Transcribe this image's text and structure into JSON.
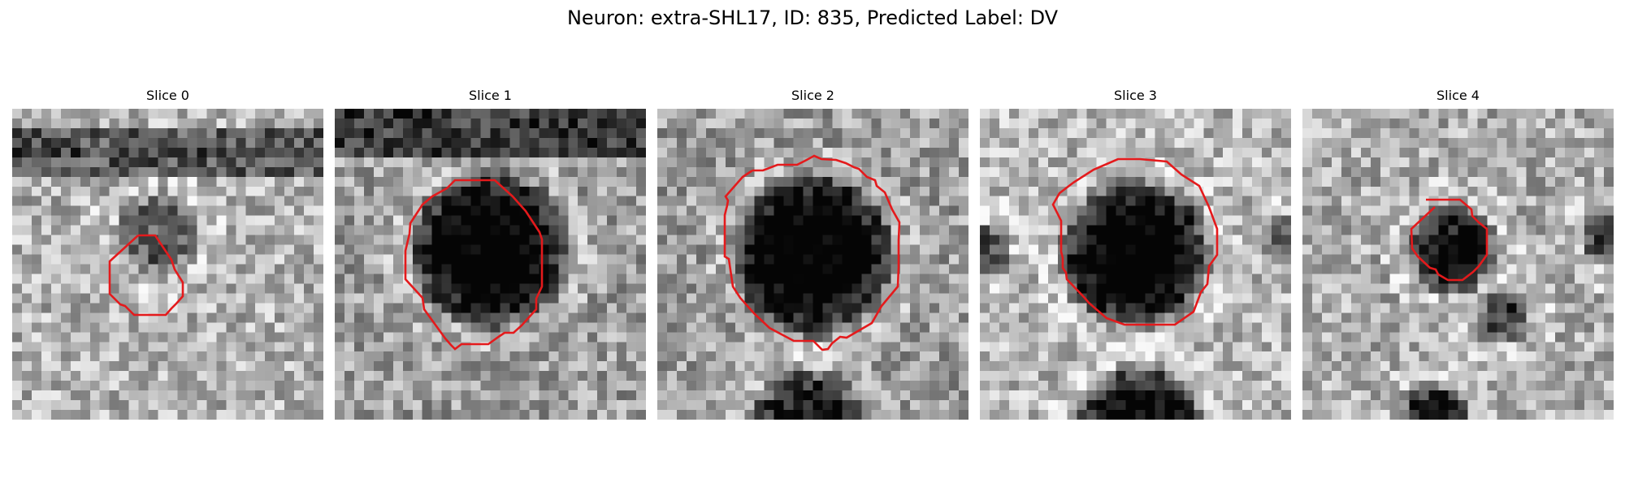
{
  "figure": {
    "title": "Neuron: extra-SHL17, ID: 835, Predicted Label: DV"
  },
  "colors": {
    "contour": "#e41a1c",
    "background": "#ffffff"
  },
  "slices": [
    {
      "title": "Slice 0"
    },
    {
      "title": "Slice 1"
    },
    {
      "title": "Slice 2"
    },
    {
      "title": "Slice 3"
    },
    {
      "title": "Slice 4"
    }
  ]
}
